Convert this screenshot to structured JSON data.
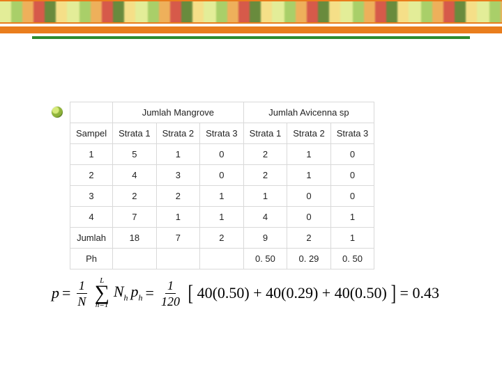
{
  "table": {
    "header_group_1": "Jumlah Mangrove",
    "header_group_2": "Jumlah Avicenna sp",
    "col0": "Sampel",
    "col1": "Strata 1",
    "col2": "Strata 2",
    "col3": "Strata 3",
    "col4": "Strata 1",
    "col5": "Strata 2",
    "col6": "Strata 3",
    "rows": [
      {
        "s": "1",
        "a": "5",
        "b": "1",
        "c": "0",
        "d": "2",
        "e": "1",
        "f": "0"
      },
      {
        "s": "2",
        "a": "4",
        "b": "3",
        "c": "0",
        "d": "2",
        "e": "1",
        "f": "0"
      },
      {
        "s": "3",
        "a": "2",
        "b": "2",
        "c": "1",
        "d": "1",
        "e": "0",
        "f": "0"
      },
      {
        "s": "4",
        "a": "7",
        "b": "1",
        "c": "1",
        "d": "4",
        "e": "0",
        "f": "1"
      }
    ],
    "total_label": "Jumlah",
    "totals": {
      "a": "18",
      "b": "7",
      "c": "2",
      "d": "9",
      "e": "2",
      "f": "1"
    },
    "ph_label": "Ph",
    "ph": {
      "d": "0. 50",
      "e": "0. 29",
      "f": "0. 50"
    },
    "border_color": "#d9d9d9",
    "cell_fontsize": 13,
    "text_color": "#222222",
    "background": "#ffffff"
  },
  "formula": {
    "lhs": "p",
    "eq": "=",
    "num1": "1",
    "den1": "N",
    "sum_top": "L",
    "sum_bot": "h=1",
    "term_N": "N",
    "term_Nh_sub": "h",
    "term_p": "p",
    "term_ph_sub": "h",
    "num2": "1",
    "den2": "120",
    "lbr": "[",
    "inside": "40(0.50) + 40(0.29) + 40(0.50)",
    "rbr": "]",
    "result": "= 0.43",
    "font_family": "Times New Roman",
    "fontsize": 22,
    "color": "#000000"
  },
  "decor": {
    "orange": "#e97d1c",
    "green": "#2e8b2e",
    "bullet_gradient": [
      "#d6ea7a",
      "#8fb33a",
      "#4a6e18"
    ]
  }
}
